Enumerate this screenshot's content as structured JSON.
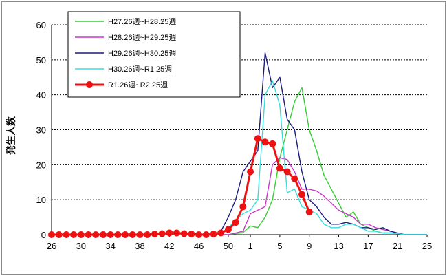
{
  "chart_data": {
    "type": "line",
    "ylabel": "発生人数",
    "xlabel": "",
    "ylim": [
      0,
      60
    ],
    "yticks": [
      0,
      10,
      20,
      30,
      40,
      50,
      60
    ],
    "xtick_labels": [
      "26",
      "30",
      "34",
      "38",
      "42",
      "46",
      "50",
      "1",
      "5",
      "9",
      "13",
      "17",
      "21",
      "25"
    ],
    "grid": "horizontal dotted",
    "legend_position": "top-left",
    "x_categories": [
      "26",
      "27",
      "28",
      "29",
      "30",
      "31",
      "32",
      "33",
      "34",
      "35",
      "36",
      "37",
      "38",
      "39",
      "40",
      "41",
      "42",
      "43",
      "44",
      "45",
      "46",
      "47",
      "48",
      "49",
      "50",
      "51",
      "52",
      "1",
      "2",
      "3",
      "4",
      "5",
      "6",
      "7",
      "8",
      "9",
      "10",
      "11",
      "12",
      "13",
      "14",
      "15",
      "16",
      "17",
      "18",
      "19",
      "20",
      "21",
      "22",
      "23",
      "24",
      "25"
    ],
    "series": [
      {
        "name": "H27.26週~H28.25週",
        "color": "#33cc33",
        "marker": false,
        "values": [
          0,
          0,
          0,
          0,
          0,
          0,
          0,
          0,
          0,
          0,
          0,
          0,
          0,
          0,
          0,
          0,
          0,
          0,
          0,
          0,
          0,
          0,
          0,
          0,
          0,
          0.3,
          0.6,
          2.5,
          2,
          5,
          10,
          22,
          30,
          38,
          42,
          30,
          24,
          17,
          13,
          9,
          5,
          6.5,
          3,
          2,
          1,
          0.5,
          0.5,
          0.3,
          0,
          0,
          0,
          0
        ]
      },
      {
        "name": "H28.26週~H29.25週",
        "color": "#cc33cc",
        "marker": false,
        "values": [
          0,
          0,
          0,
          0,
          0,
          0,
          0,
          0,
          0,
          0,
          0,
          0,
          0,
          0,
          0,
          0,
          0,
          0,
          0,
          0,
          0,
          0,
          0,
          0,
          0,
          0.5,
          1,
          6,
          7,
          8,
          20,
          22,
          21.5,
          18,
          13,
          13,
          12.5,
          11,
          9,
          7,
          6,
          5,
          3,
          3,
          2,
          1.5,
          1,
          0.5,
          0,
          0,
          0,
          0
        ]
      },
      {
        "name": "H29.26週~H30.25週",
        "color": "#1a1a80",
        "marker": false,
        "values": [
          0,
          0,
          0,
          0,
          0,
          0,
          0,
          0,
          0,
          0,
          0,
          0,
          0,
          0,
          0,
          0,
          0,
          0,
          0,
          0,
          0,
          0,
          0,
          1,
          5,
          10,
          18,
          21,
          24,
          52,
          42,
          45,
          33,
          30,
          18,
          10,
          8,
          5,
          3,
          3,
          3.5,
          3,
          2,
          2,
          1.5,
          2,
          1,
          0.5,
          0,
          0,
          0,
          0
        ]
      },
      {
        "name": "H30.26週~R1.25週",
        "color": "#33dddd",
        "marker": false,
        "values": [
          0,
          0,
          0,
          0,
          0,
          0,
          0,
          0,
          0,
          0,
          0,
          0,
          0,
          0,
          0,
          0,
          0,
          0,
          0,
          0,
          0,
          0,
          0,
          0,
          2,
          4,
          6,
          7,
          10,
          40,
          44,
          37,
          12,
          13,
          8,
          7,
          6,
          3,
          2,
          2,
          3,
          3,
          2,
          1,
          1,
          0.5,
          0.5,
          0.3,
          0,
          0,
          0,
          0
        ]
      },
      {
        "name": "R1.26週~R2.25週",
        "color": "#ee1111",
        "marker": true,
        "values": [
          0,
          0,
          0,
          0,
          0,
          0,
          0,
          0,
          0,
          0,
          0,
          0,
          0,
          0,
          0.2,
          0.3,
          0.5,
          0.5,
          0.3,
          0.2,
          0,
          0,
          0.2,
          0.5,
          1.5,
          3.5,
          8,
          18,
          27.5,
          26.5,
          26,
          19,
          18,
          16,
          11.5,
          6.5
        ]
      }
    ]
  }
}
